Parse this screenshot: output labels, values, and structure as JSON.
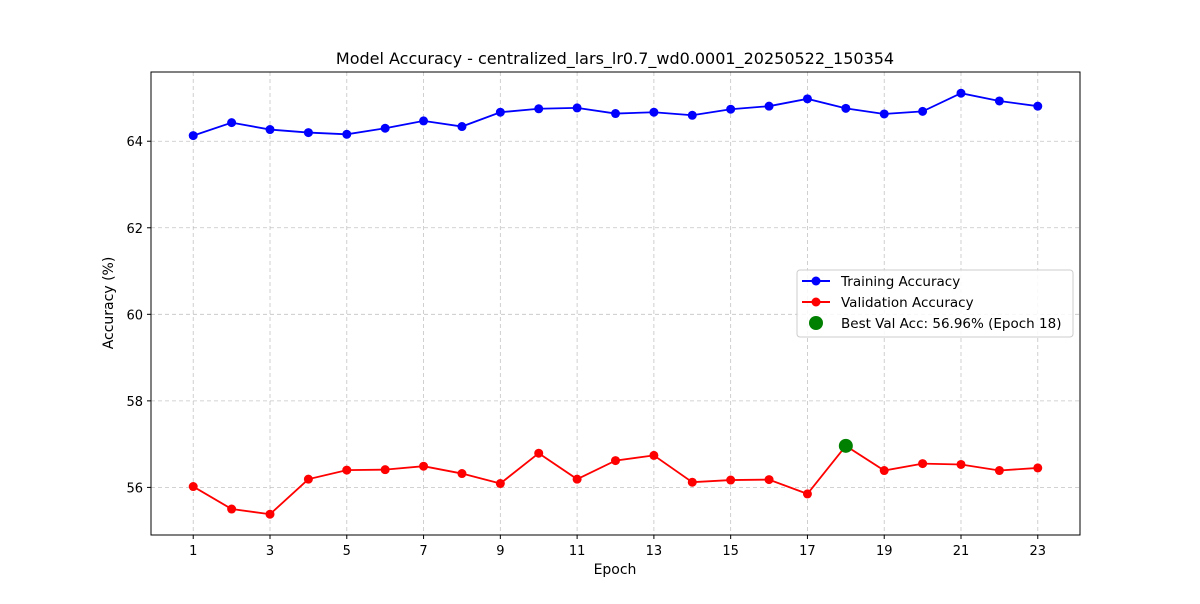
{
  "chart_data": {
    "type": "line",
    "title": "Model Accuracy - centralized_lars_lr0.7_wd0.0001_20250522_150354",
    "xlabel": "Epoch",
    "ylabel": "Accuracy (%)",
    "x": [
      1,
      2,
      3,
      4,
      5,
      6,
      7,
      8,
      9,
      10,
      11,
      12,
      13,
      14,
      15,
      16,
      17,
      18,
      19,
      20,
      21,
      22,
      23
    ],
    "xlim": [
      -0.1,
      24.1
    ],
    "ylim": [
      54.9,
      65.6
    ],
    "xticks": [
      1,
      3,
      5,
      7,
      9,
      11,
      13,
      15,
      17,
      19,
      21,
      23
    ],
    "xtick_labels": [
      "1",
      "3",
      "5",
      "7",
      "9",
      "11",
      "13",
      "15",
      "17",
      "19",
      "21",
      "23"
    ],
    "yticks": [
      56,
      58,
      60,
      62,
      64
    ],
    "ytick_labels": [
      "56",
      "58",
      "60",
      "62",
      "64"
    ],
    "grid": true,
    "legend_position": "center-right",
    "series": [
      {
        "name": "Training Accuracy",
        "color": "#0000ff",
        "marker": "circle",
        "values": [
          64.13,
          64.43,
          64.27,
          64.2,
          64.16,
          64.3,
          64.47,
          64.34,
          64.67,
          64.75,
          64.77,
          64.64,
          64.67,
          64.6,
          64.74,
          64.81,
          64.98,
          64.76,
          64.63,
          64.69,
          65.11,
          64.93,
          64.81
        ]
      },
      {
        "name": "Validation Accuracy",
        "color": "#ff0000",
        "marker": "circle",
        "values": [
          56.02,
          55.5,
          55.38,
          56.19,
          56.4,
          56.41,
          56.49,
          56.32,
          56.09,
          56.79,
          56.19,
          56.62,
          56.74,
          56.12,
          56.17,
          56.18,
          55.85,
          56.96,
          56.39,
          56.55,
          56.53,
          56.39,
          56.45
        ]
      }
    ],
    "highlight": {
      "label": "Best Val Acc: 56.96% (Epoch 18)",
      "x": 18,
      "y": 56.96,
      "color": "#008000"
    }
  }
}
